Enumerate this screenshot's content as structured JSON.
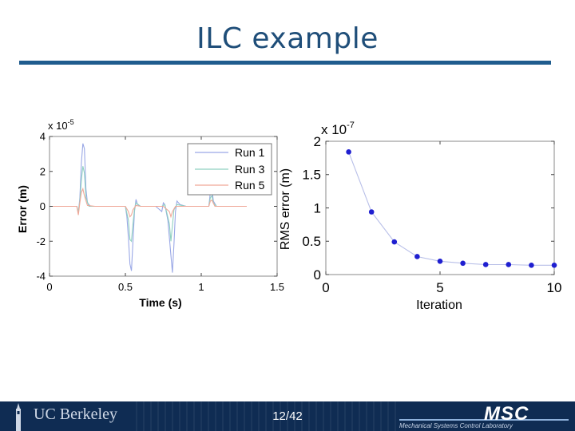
{
  "slide": {
    "title": "ILC example",
    "page_number": "12/42",
    "footer_logo_left": "UC Berkeley",
    "footer_logo_right": "MSC",
    "footer_logo_right_sub": "Mechanical Systems Control Laboratory"
  },
  "colors": {
    "title": "#1f4e79",
    "rule": "#1f5c8e",
    "footer": "#0f2c53",
    "run1": "#9aa8e6",
    "run3": "#8fd0c0",
    "run5": "#f0a898",
    "rms": "#1f1fd0"
  },
  "chart_data": [
    {
      "type": "line",
      "xlabel": "Time (s)",
      "ylabel": "Error (m)",
      "y_multiplier": "x 10",
      "y_exponent": "-5",
      "xlim": [
        0,
        1.5
      ],
      "ylim": [
        -4,
        4
      ],
      "xticks": [
        0,
        0.5,
        1,
        1.5
      ],
      "xtick_labels": [
        "0",
        "0.5",
        "1",
        "1.5"
      ],
      "yticks": [
        4,
        2,
        0,
        -2,
        -4
      ],
      "ytick_labels": [
        "4",
        "2",
        "0",
        "-2",
        "-4"
      ],
      "legend_position": "top-right",
      "series": [
        {
          "name": "Run 1",
          "color": "#9aa8e6",
          "x": [
            0,
            0.18,
            0.19,
            0.2,
            0.21,
            0.22,
            0.23,
            0.24,
            0.25,
            0.27,
            0.3,
            0.5,
            0.51,
            0.52,
            0.53,
            0.54,
            0.55,
            0.56,
            0.57,
            0.58,
            0.6,
            0.7,
            0.74,
            0.75,
            0.76,
            0.78,
            0.8,
            0.81,
            0.82,
            0.83,
            0.84,
            0.86,
            0.9,
            1.05,
            1.06,
            1.07,
            1.08,
            1.1,
            1.3
          ],
          "y": [
            0,
            0,
            -0.4,
            0.5,
            2.5,
            3.6,
            3.3,
            1.0,
            0.2,
            0,
            0,
            0,
            -0.6,
            -1.8,
            -3.3,
            -3.7,
            -2.0,
            -0.3,
            0.4,
            0.1,
            0,
            0,
            -0.3,
            0.2,
            0.1,
            -0.8,
            -2.8,
            -3.8,
            -2.2,
            -0.3,
            0.3,
            0.1,
            0,
            0,
            0.8,
            1.0,
            0.3,
            0,
            0
          ]
        },
        {
          "name": "Run 3",
          "color": "#8fd0c0",
          "x": [
            0,
            0.18,
            0.19,
            0.2,
            0.21,
            0.22,
            0.23,
            0.24,
            0.26,
            0.3,
            0.5,
            0.52,
            0.53,
            0.54,
            0.55,
            0.56,
            0.57,
            0.6,
            0.74,
            0.76,
            0.79,
            0.8,
            0.81,
            0.82,
            0.84,
            0.9,
            1.05,
            1.06,
            1.07,
            1.08,
            1.1,
            1.3
          ],
          "y": [
            0,
            0,
            -0.3,
            0.3,
            1.5,
            2.3,
            1.9,
            0.5,
            0,
            0,
            0,
            -0.8,
            -1.9,
            -2.0,
            -1.0,
            -0.2,
            0.2,
            0,
            0,
            0.1,
            -1.0,
            -2.0,
            -1.1,
            -0.2,
            0.1,
            0,
            0,
            0.5,
            0.6,
            0.2,
            0,
            0
          ]
        },
        {
          "name": "Run 5",
          "color": "#f0a898",
          "x": [
            0,
            0.18,
            0.19,
            0.2,
            0.21,
            0.22,
            0.23,
            0.25,
            0.3,
            0.5,
            0.52,
            0.53,
            0.54,
            0.55,
            0.57,
            0.6,
            0.75,
            0.79,
            0.8,
            0.81,
            0.83,
            0.9,
            1.05,
            1.06,
            1.07,
            1.09,
            1.3
          ],
          "y": [
            0,
            0,
            -0.5,
            0.2,
            0.8,
            1.0,
            0.6,
            0.05,
            0,
            0,
            -0.3,
            -0.6,
            -0.5,
            -0.2,
            0.05,
            0,
            0,
            -0.3,
            -0.6,
            -0.3,
            0,
            0,
            0,
            0.3,
            0.35,
            0,
            0
          ]
        }
      ]
    },
    {
      "type": "line",
      "xlabel": "Iteration",
      "ylabel": "RMS error (m)",
      "y_multiplier": "x 10",
      "y_exponent": "-7",
      "xlim": [
        0,
        10
      ],
      "ylim": [
        0,
        2
      ],
      "xticks": [
        0,
        5,
        10
      ],
      "xtick_labels": [
        "0",
        "5",
        "10"
      ],
      "yticks": [
        2,
        1.5,
        1,
        0.5,
        0
      ],
      "ytick_labels": [
        "2",
        "1.5",
        "1",
        "0.5",
        "0"
      ],
      "series": [
        {
          "color": "#1f1fd0",
          "x": [
            1,
            2,
            3,
            4,
            5,
            6,
            7,
            8,
            9,
            10
          ],
          "y": [
            1.84,
            0.94,
            0.49,
            0.27,
            0.2,
            0.17,
            0.15,
            0.15,
            0.14,
            0.14
          ]
        }
      ]
    }
  ]
}
